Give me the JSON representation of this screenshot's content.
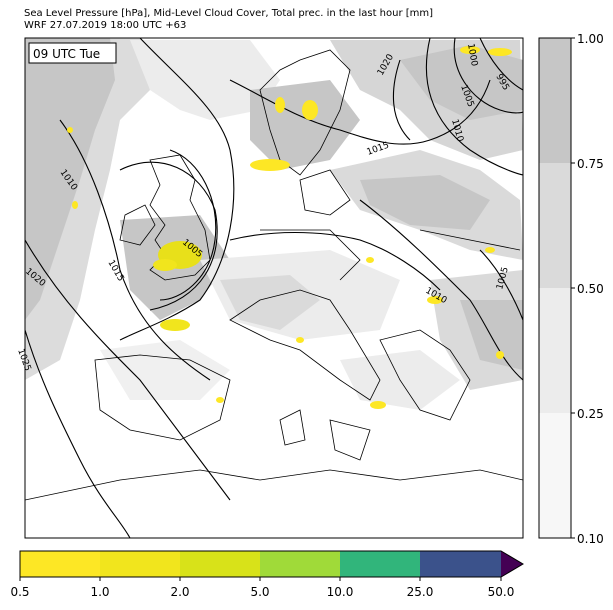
{
  "title_line1": "Sea Level Pressure [hPa], Mid-Level Cloud Cover, Total prec. in the last hour [mm]",
  "title_line2": "WRF 27.07.2019 18:00 UTC +63",
  "time_label": "09 UTC Tue",
  "isobar_labels": {
    "l1020_north": "1020",
    "l1000": "1000",
    "l995": "995",
    "l1005_ne": "1005",
    "l1010_ne": "1010",
    "l1015_c": "1015",
    "l1010_w": "1010",
    "l1005_uk": "1005",
    "l1015_w": "1015",
    "l1020_w": "1020",
    "l1025": "1025",
    "l1010_e": "1010",
    "l1005_e": "1005"
  },
  "cloud_colorbar": {
    "ticks": [
      "0.10",
      "0.25",
      "0.50",
      "0.75",
      "1.00"
    ],
    "colors": [
      "#f7f7f7",
      "#ececec",
      "#dadada",
      "#c6c6c6"
    ]
  },
  "precip_colorbar": {
    "ticks": [
      "0.5",
      "1.0",
      "2.0",
      "5.0",
      "10.0",
      "25.0",
      "50.0"
    ],
    "colors": [
      "#fde725",
      "#f1e51d",
      "#d8e219",
      "#a0da39",
      "#31b57b",
      "#3b528b",
      "#440154"
    ]
  }
}
